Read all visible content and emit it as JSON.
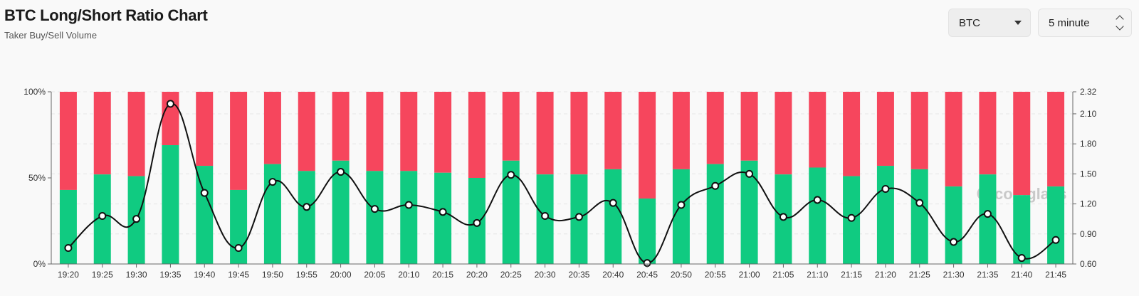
{
  "header": {
    "title": "BTC Long/Short Ratio Chart",
    "subtitle": "Taker Buy/Sell Volume"
  },
  "controls": {
    "symbol": "BTC",
    "interval": "5 minute"
  },
  "watermark": "coinglass",
  "colors": {
    "long": "#10cb81",
    "short": "#f6465d",
    "ratio_line": "#111111"
  },
  "chart_data": {
    "type": "bar",
    "stacked_percent": true,
    "categories": [
      "19:20",
      "19:25",
      "19:30",
      "19:35",
      "19:40",
      "19:45",
      "19:50",
      "19:55",
      "20:00",
      "20:05",
      "20:10",
      "20:15",
      "20:20",
      "20:25",
      "20:30",
      "20:35",
      "20:40",
      "20:45",
      "20:50",
      "20:55",
      "21:00",
      "21:05",
      "21:10",
      "21:15",
      "21:20",
      "21:25",
      "21:30",
      "21:35",
      "21:40",
      "21:45"
    ],
    "series": [
      {
        "values": [
          43,
          52,
          51,
          69,
          57,
          43,
          58,
          54,
          60,
          54,
          54,
          53,
          50,
          60,
          52,
          52,
          55,
          38,
          55,
          58,
          60,
          52,
          56,
          51,
          57,
          55,
          45,
          52,
          40,
          45
        ]
      },
      {
        "values": [
          57,
          48,
          49,
          31,
          43,
          57,
          42,
          46,
          40,
          46,
          46,
          47,
          50,
          40,
          48,
          48,
          45,
          62,
          45,
          42,
          40,
          48,
          44,
          49,
          43,
          45,
          55,
          48,
          60,
          55
        ]
      },
      {
        "values": [
          0.76,
          1.08,
          1.05,
          2.2,
          1.31,
          0.76,
          1.42,
          1.17,
          1.52,
          1.15,
          1.19,
          1.12,
          1.01,
          1.49,
          1.08,
          1.07,
          1.21,
          0.61,
          1.19,
          1.38,
          1.5,
          1.07,
          1.24,
          1.06,
          1.35,
          1.21,
          0.82,
          1.1,
          0.66,
          0.84
        ]
      }
    ],
    "y_left": {
      "ylim": [
        0,
        100
      ],
      "ticks": [
        "0%",
        "50%",
        "100%"
      ]
    },
    "y_right": {
      "ylim": [
        0.6,
        2.32
      ],
      "ticks": [
        "0.60",
        "0.90",
        "1.20",
        "1.50",
        "1.80",
        "2.10",
        "2.32"
      ]
    },
    "grid": true,
    "legend": "none"
  }
}
